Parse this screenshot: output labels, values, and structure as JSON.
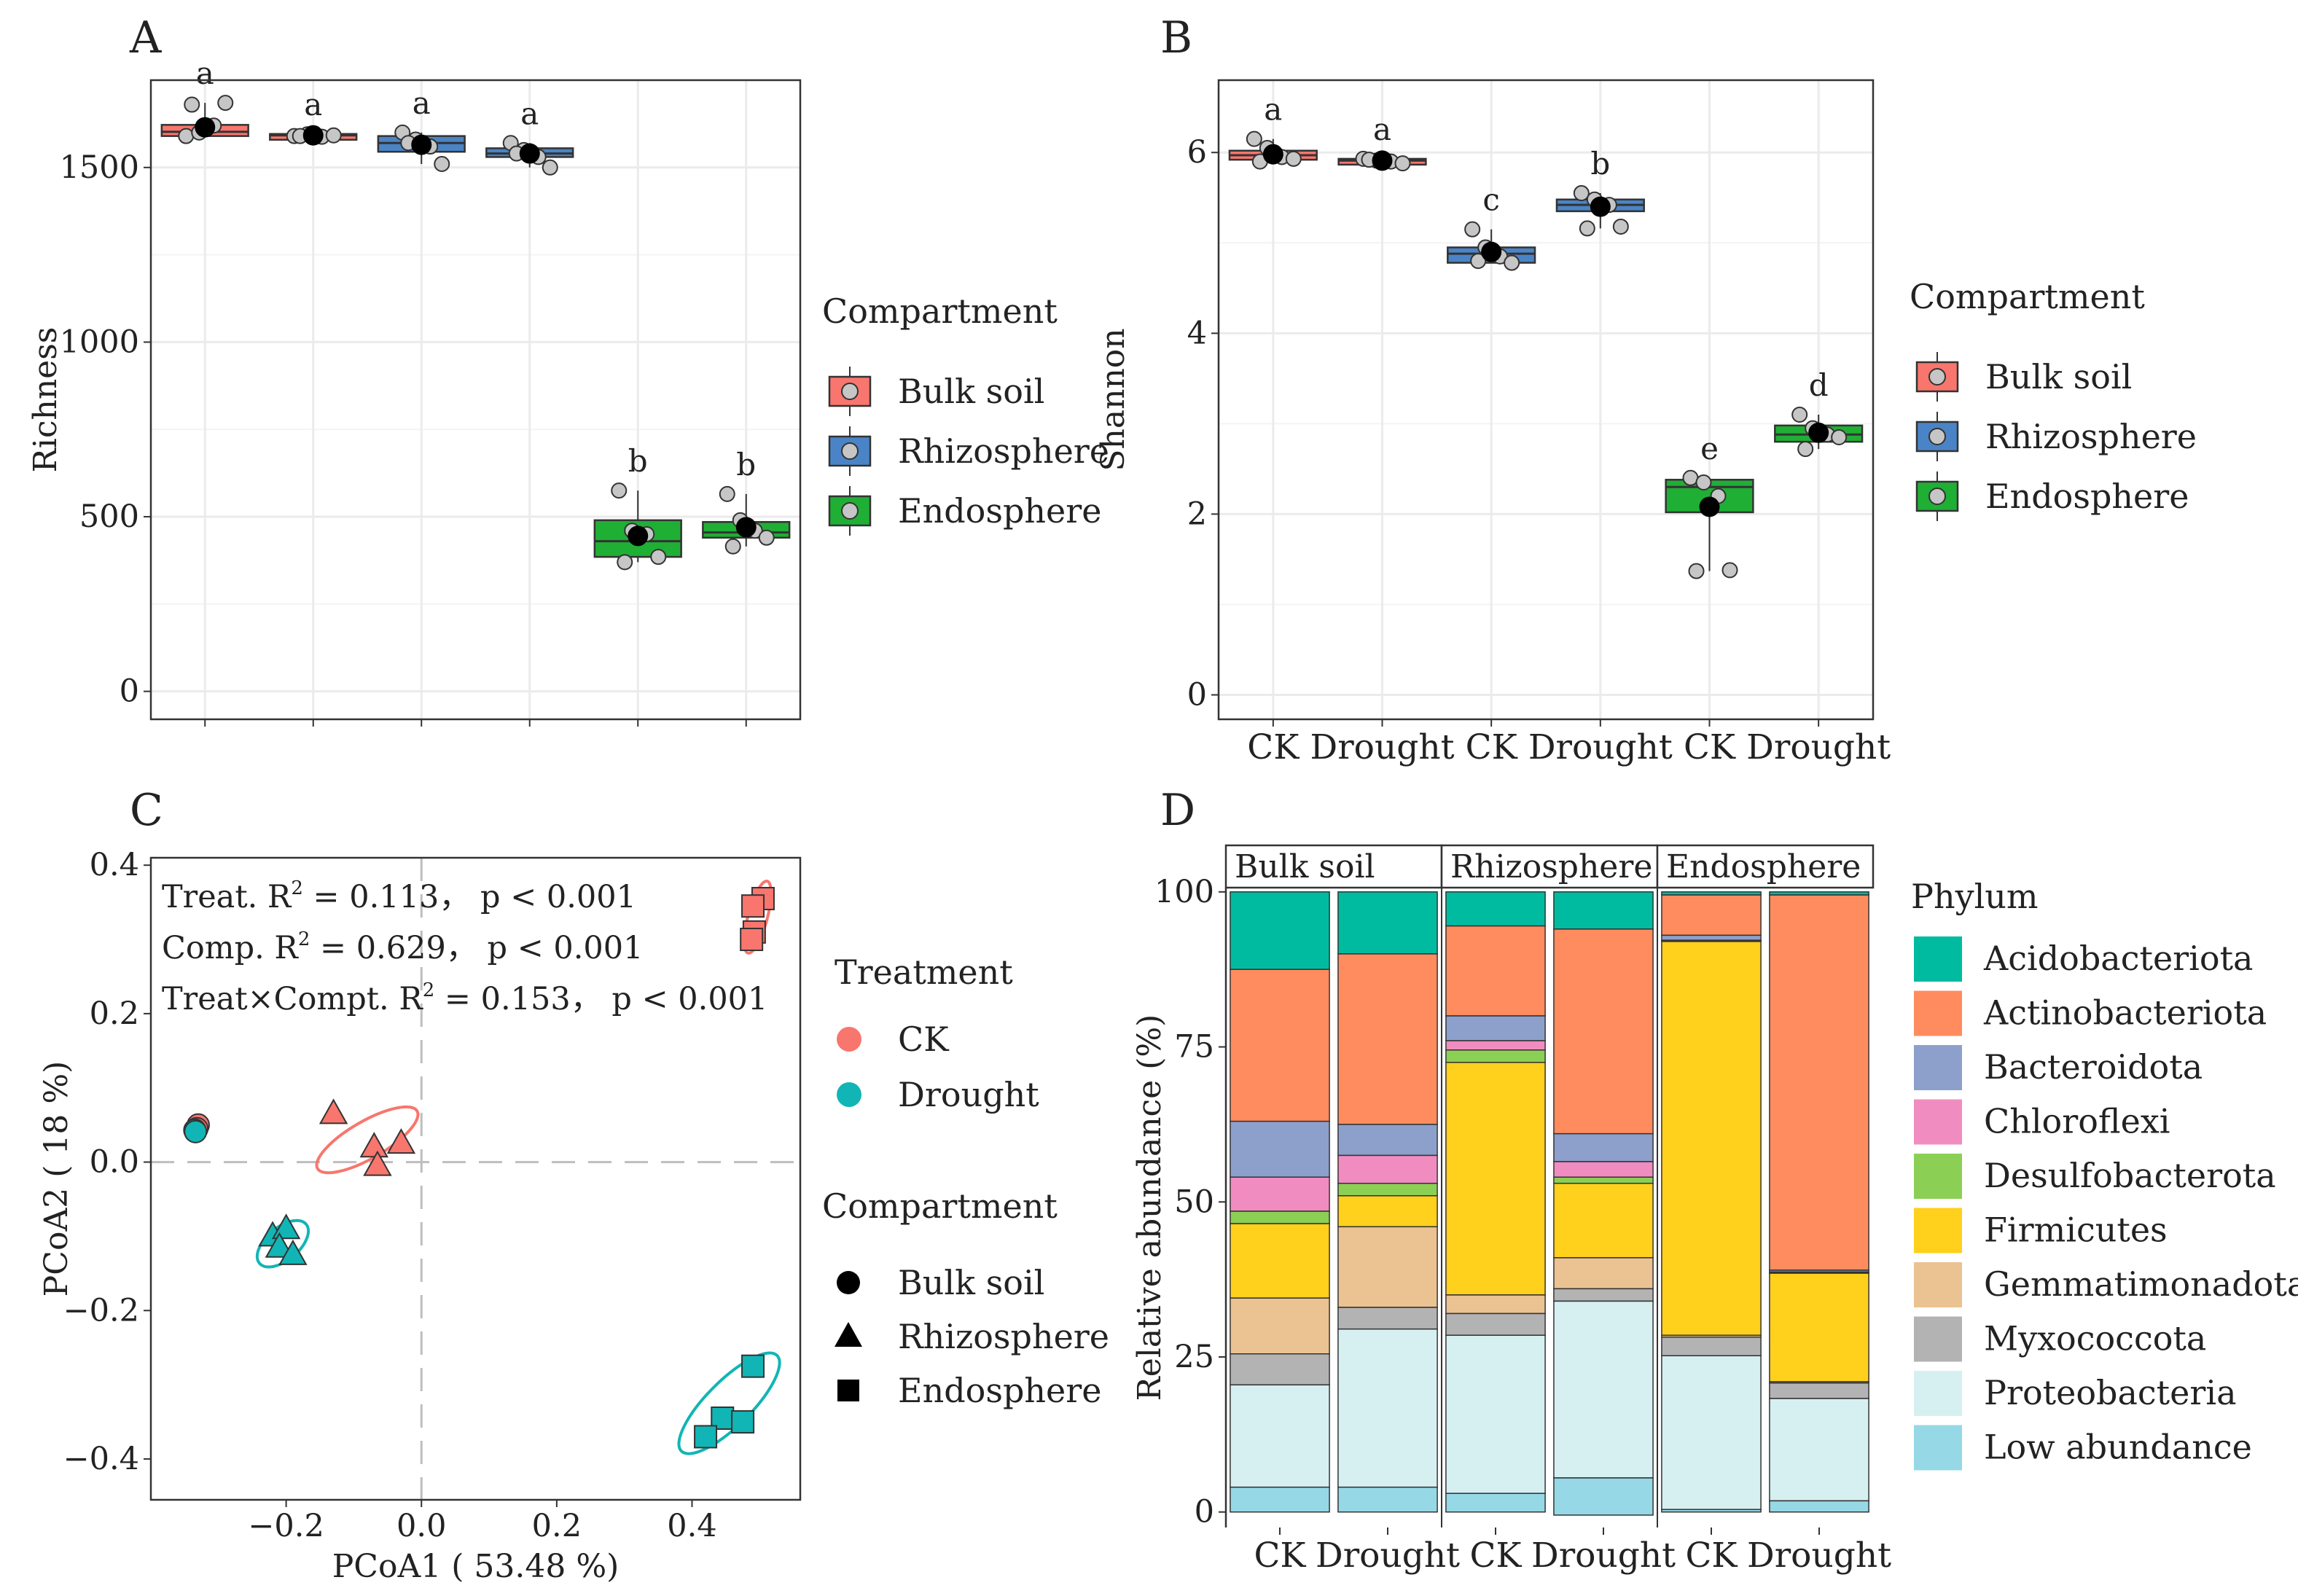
{
  "chart_data": [
    {
      "panel": "A",
      "type": "boxplot",
      "ylabel": "Richness",
      "ylim": [
        -80,
        1750
      ],
      "yticks": [
        0,
        500,
        1000,
        1500
      ],
      "groups": [
        {
          "compartment": "Bulk soil",
          "treatment": "CK",
          "color": "#F8766D",
          "q1": 1590,
          "median": 1602,
          "q3": 1622,
          "mean": 1615,
          "sig": "a",
          "points": [
            1590,
            1600,
            1620,
            1685,
            1680
          ]
        },
        {
          "compartment": "Bulk soil",
          "treatment": "Drought",
          "color": "#F8766D",
          "q1": 1585,
          "median": 1592,
          "q3": 1596,
          "mean": 1592,
          "sig": "a",
          "points": [
            1590,
            1595,
            1588,
            1592,
            1590
          ]
        },
        {
          "compartment": "Rhizosphere",
          "treatment": "CK",
          "color": "#4A84C6",
          "q1": 1545,
          "median": 1570,
          "q3": 1590,
          "mean": 1565,
          "sig": "a",
          "points": [
            1600,
            1580,
            1560,
            1510,
            1570
          ]
        },
        {
          "compartment": "Rhizosphere",
          "treatment": "Drought",
          "color": "#4A84C6",
          "q1": 1530,
          "median": 1540,
          "q3": 1555,
          "mean": 1540,
          "sig": "a",
          "points": [
            1570,
            1550,
            1530,
            1500,
            1540
          ]
        },
        {
          "compartment": "Endosphere",
          "treatment": "CK",
          "color": "#1FAF35",
          "q1": 385,
          "median": 430,
          "q3": 490,
          "mean": 445,
          "sig": "b",
          "points": [
            575,
            460,
            450,
            385,
            370
          ]
        },
        {
          "compartment": "Endosphere",
          "treatment": "Drought",
          "color": "#1FAF35",
          "q1": 440,
          "median": 455,
          "q3": 485,
          "mean": 470,
          "sig": "b",
          "points": [
            565,
            490,
            460,
            440,
            415
          ]
        }
      ]
    },
    {
      "panel": "B",
      "type": "boxplot",
      "ylabel": "Shannon",
      "ylim": [
        -0.27,
        6.8
      ],
      "yticks": [
        0,
        2,
        4,
        6
      ],
      "xticklabels": [
        "CK",
        "Drought",
        "CK",
        "Drought",
        "CK",
        "Drought"
      ],
      "groups": [
        {
          "compartment": "Bulk soil",
          "treatment": "CK",
          "color": "#F8766D",
          "q1": 5.92,
          "median": 5.97,
          "q3": 6.02,
          "mean": 5.98,
          "sig": "a",
          "points": [
            6.15,
            6.05,
            5.95,
            5.93,
            5.9
          ]
        },
        {
          "compartment": "Bulk soil",
          "treatment": "Drought",
          "color": "#F8766D",
          "q1": 5.89,
          "median": 5.91,
          "q3": 5.93,
          "mean": 5.91,
          "sig": "a",
          "points": [
            5.93,
            5.91,
            5.9,
            5.88,
            5.92
          ]
        },
        {
          "compartment": "Rhizosphere",
          "treatment": "CK",
          "color": "#4A84C6",
          "q1": 4.78,
          "median": 4.88,
          "q3": 4.95,
          "mean": 4.9,
          "sig": "c",
          "points": [
            5.15,
            4.95,
            4.85,
            4.78,
            4.8
          ]
        },
        {
          "compartment": "Rhizosphere",
          "treatment": "Drought",
          "color": "#4A84C6",
          "q1": 5.35,
          "median": 5.42,
          "q3": 5.48,
          "mean": 5.4,
          "sig": "b",
          "points": [
            5.55,
            5.48,
            5.42,
            5.18,
            5.16
          ]
        },
        {
          "compartment": "Endosphere",
          "treatment": "CK",
          "color": "#1FAF35",
          "q1": 2.02,
          "median": 2.3,
          "q3": 2.38,
          "mean": 2.08,
          "sig": "e",
          "points": [
            2.4,
            2.35,
            2.2,
            1.38,
            1.37
          ]
        },
        {
          "compartment": "Endosphere",
          "treatment": "Drought",
          "color": "#1FAF35",
          "q1": 2.8,
          "median": 2.88,
          "q3": 2.98,
          "mean": 2.9,
          "sig": "d",
          "points": [
            3.1,
            2.95,
            2.88,
            2.85,
            2.72
          ]
        }
      ]
    },
    {
      "panel": "C",
      "type": "scatter",
      "xlabel": "PCoA1 ( 53.48 %)",
      "ylabel": "PCoA2 ( 18 %)",
      "xlim": [
        -0.4,
        0.56
      ],
      "ylim": [
        -0.455,
        0.41
      ],
      "xticks": [
        -0.2,
        0.0,
        0.2,
        0.4
      ],
      "xticklabels": [
        "−0.2",
        "0.0",
        "0.2",
        "0.4"
      ],
      "yticks": [
        -0.4,
        -0.2,
        0.0,
        0.2,
        0.4
      ],
      "yticklabels": [
        "−0.4",
        "−0.2",
        "0.0",
        "0.2",
        "0.4"
      ],
      "points": [
        {
          "treatment": "CK",
          "compartment": "Bulk soil",
          "x": -0.33,
          "y": 0.05
        },
        {
          "treatment": "CK",
          "compartment": "Bulk soil",
          "x": -0.332,
          "y": 0.045
        },
        {
          "treatment": "Drought",
          "compartment": "Bulk soil",
          "x": -0.335,
          "y": 0.043
        },
        {
          "treatment": "Drought",
          "compartment": "Bulk soil",
          "x": -0.334,
          "y": 0.041
        },
        {
          "treatment": "CK",
          "compartment": "Rhizosphere",
          "x": -0.13,
          "y": 0.065
        },
        {
          "treatment": "CK",
          "compartment": "Rhizosphere",
          "x": -0.07,
          "y": 0.02
        },
        {
          "treatment": "CK",
          "compartment": "Rhizosphere",
          "x": -0.03,
          "y": 0.025
        },
        {
          "treatment": "CK",
          "compartment": "Rhizosphere",
          "x": -0.065,
          "y": -0.005
        },
        {
          "treatment": "Drought",
          "compartment": "Rhizosphere",
          "x": -0.22,
          "y": -0.1
        },
        {
          "treatment": "Drought",
          "compartment": "Rhizosphere",
          "x": -0.2,
          "y": -0.09
        },
        {
          "treatment": "Drought",
          "compartment": "Rhizosphere",
          "x": -0.21,
          "y": -0.115
        },
        {
          "treatment": "Drought",
          "compartment": "Rhizosphere",
          "x": -0.19,
          "y": -0.125
        },
        {
          "treatment": "CK",
          "compartment": "Endosphere",
          "x": 0.505,
          "y": 0.355
        },
        {
          "treatment": "CK",
          "compartment": "Endosphere",
          "x": 0.49,
          "y": 0.345
        },
        {
          "treatment": "CK",
          "compartment": "Endosphere",
          "x": 0.492,
          "y": 0.31
        },
        {
          "treatment": "CK",
          "compartment": "Endosphere",
          "x": 0.488,
          "y": 0.3
        },
        {
          "treatment": "Drought",
          "compartment": "Endosphere",
          "x": 0.49,
          "y": -0.275
        },
        {
          "treatment": "Drought",
          "compartment": "Endosphere",
          "x": 0.445,
          "y": -0.345
        },
        {
          "treatment": "Drought",
          "compartment": "Endosphere",
          "x": 0.475,
          "y": -0.35
        },
        {
          "treatment": "Drought",
          "compartment": "Endosphere",
          "x": 0.42,
          "y": -0.37
        }
      ],
      "ellipses": [
        {
          "treatment": "CK",
          "cx": -0.08,
          "cy": 0.03,
          "rx": 0.085,
          "ry": 0.025,
          "angle": 30
        },
        {
          "treatment": "Drought",
          "cx": -0.205,
          "cy": -0.11,
          "rx": 0.045,
          "ry": 0.022,
          "angle": 40
        },
        {
          "treatment": "CK",
          "cx": 0.497,
          "cy": 0.33,
          "rx": 0.055,
          "ry": 0.013,
          "angle": 75
        },
        {
          "treatment": "Drought",
          "cx": 0.455,
          "cy": -0.325,
          "rx": 0.1,
          "ry": 0.03,
          "angle": 45
        }
      ],
      "colors": {
        "CK": "#F8766D",
        "Drought": "#12B5B5"
      },
      "stats": {
        "line1_prefix": "Treat. R",
        "line1_sup": "2",
        "line1_suffix": " = 0.113， p < 0.001",
        "line2_prefix": "Comp. R",
        "line2_sup": "2",
        "line2_suffix": " = 0.629， p < 0.001",
        "line3_prefix": "Treat×Compt. R",
        "line3_sup": "2",
        "line3_suffix": " = 0.153， p < 0.001"
      }
    },
    {
      "panel": "D",
      "type": "bar",
      "stacked": true,
      "ylabel": "Relative abundance (%)",
      "ylim": [
        -2.5,
        107.5
      ],
      "yticks": [
        0,
        25,
        50,
        75,
        100
      ],
      "facets": [
        "Bulk soil",
        "Rhizosphere",
        "Endosphere"
      ],
      "categories": [
        "CK",
        "Drought",
        "CK",
        "Drought",
        "CK",
        "Drought"
      ],
      "legend_title": "Phylum",
      "phyla": [
        "Acidobacteriota",
        "Actinobacteriota",
        "Bacteroidota",
        "Chloroflexi",
        "Desulfobacterota",
        "Firmicutes",
        "Gemmatimonadota",
        "Myxococcota",
        "Proteobacteria",
        "Low abundance"
      ],
      "phylum_colors": [
        "#00BBA0",
        "#FF8C5E",
        "#8DA0CB",
        "#F18CC0",
        "#8CCF55",
        "#FFD01C",
        "#EBC292",
        "#B3B3B3",
        "#D6F0F2",
        "#96D8E6"
      ],
      "series": [
        {
          "name": "Acidobacteriota",
          "values": [
            12.5,
            10,
            5.5,
            6,
            0.5,
            0.5
          ]
        },
        {
          "name": "Actinobacteriota",
          "values": [
            24.5,
            27.5,
            14.5,
            33,
            6.5,
            60.5
          ]
        },
        {
          "name": "Bacteroidota",
          "values": [
            9,
            5,
            4,
            4.5,
            0.8,
            0.3
          ]
        },
        {
          "name": "Chloroflexi",
          "values": [
            5.5,
            4.5,
            1.5,
            2.5,
            0.1,
            0.1
          ]
        },
        {
          "name": "Desulfobacterota",
          "values": [
            2,
            2,
            2,
            1,
            0.1,
            0.1
          ]
        },
        {
          "name": "Firmicutes",
          "values": [
            12,
            5,
            37.5,
            12,
            63.5,
            17.5
          ]
        },
        {
          "name": "Gemmatimonadota",
          "values": [
            9,
            13,
            3,
            5,
            0.3,
            0.2
          ]
        },
        {
          "name": "Myxococcota",
          "values": [
            5,
            3.5,
            3.5,
            2,
            3,
            2.5
          ]
        },
        {
          "name": "Proteobacteria",
          "values": [
            16.5,
            25.5,
            25.5,
            28.5,
            24.8,
            16.5
          ]
        },
        {
          "name": "Low abundance",
          "values": [
            4,
            4,
            3,
            6,
            0.4,
            1.8
          ]
        }
      ]
    }
  ],
  "panel_letters": {
    "a": "A",
    "b": "B",
    "c": "C",
    "d": "D"
  },
  "legend_ab": {
    "title": "Compartment",
    "items": [
      "Bulk soil",
      "Rhizosphere",
      "Endosphere"
    ],
    "colors": [
      "#F8766D",
      "#4A84C6",
      "#1FAF35"
    ]
  },
  "legend_c": {
    "treatment_title": "Treatment",
    "treatment_items": [
      "CK",
      "Drought"
    ],
    "compartment_title": "Compartment",
    "compartment_items": [
      "Bulk soil",
      "Rhizosphere",
      "Endosphere"
    ]
  }
}
